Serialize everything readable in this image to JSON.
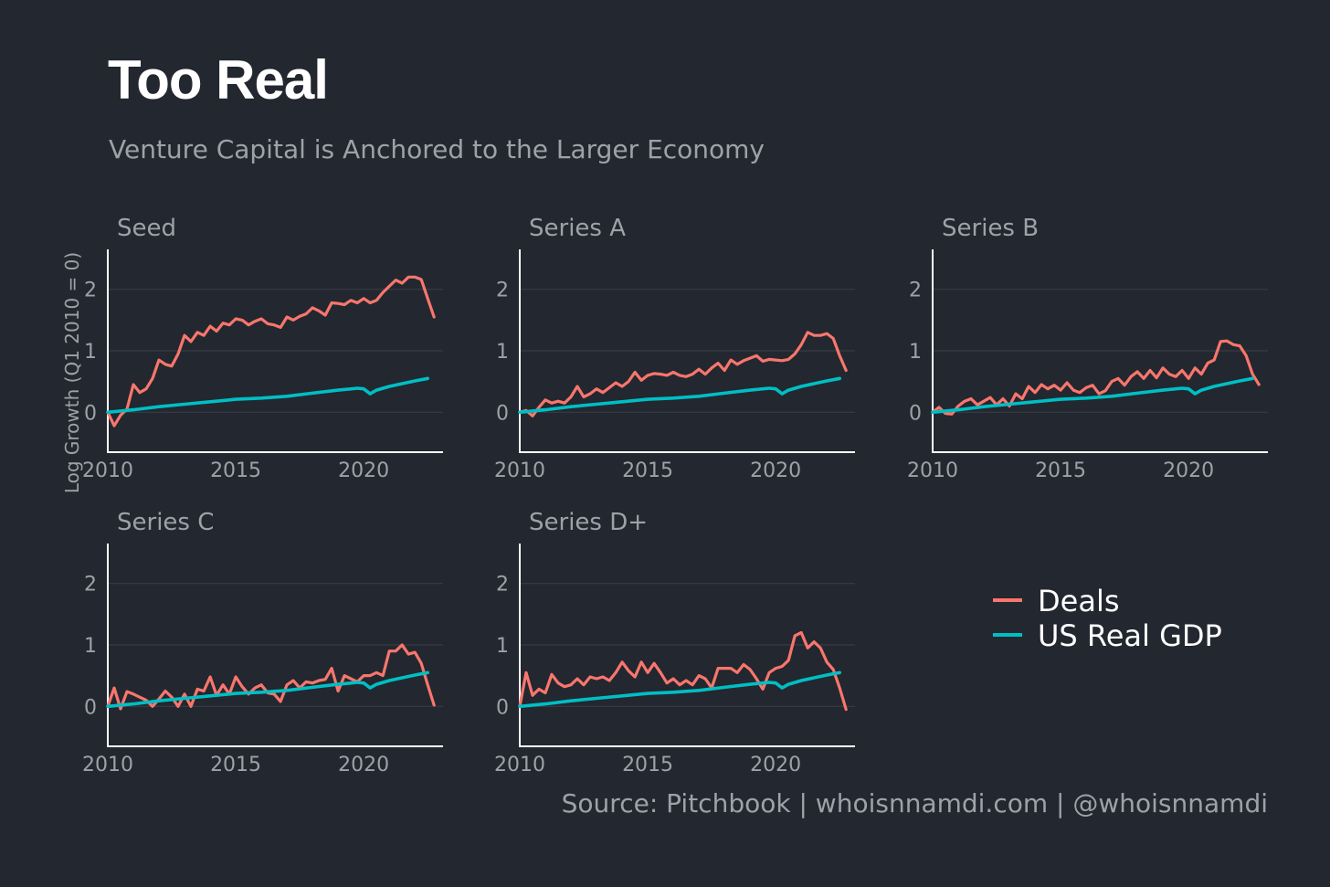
{
  "title": "Too Real",
  "subtitle": "Venture Capital is Anchored to the Larger Economy",
  "source": "Source: Pitchbook | whoisnnamdi.com | @whoisnnamdi",
  "ylabel": "Log Growth (Q1 2010 = 0)",
  "legend": {
    "placement": "right",
    "items": [
      {
        "label": "Deals",
        "color": "#f8766d"
      },
      {
        "label": "US Real GDP",
        "color": "#00bfc4"
      }
    ]
  },
  "chart_data": {
    "type": "line",
    "layout": "small-multiples",
    "xlim": [
      2010,
      2023.1
    ],
    "ylim": [
      -0.65,
      2.65
    ],
    "x_ticks": [
      2010,
      2015,
      2020
    ],
    "y_ticks": [
      0,
      1,
      2
    ],
    "grid": "horizontal",
    "shared_series": {
      "name": "US Real GDP",
      "color": "#00bfc4",
      "x": [
        2010,
        2011,
        2012,
        2013,
        2014,
        2015,
        2016,
        2017,
        2018,
        2019,
        2019.75,
        2020.0,
        2020.25,
        2020.5,
        2021,
        2022,
        2022.5
      ],
      "y": [
        0,
        0.04,
        0.09,
        0.13,
        0.17,
        0.21,
        0.23,
        0.26,
        0.31,
        0.36,
        0.39,
        0.38,
        0.3,
        0.36,
        0.42,
        0.51,
        0.55
      ]
    },
    "panels": [
      {
        "title": "Seed",
        "series": [
          {
            "name": "Deals",
            "color": "#f8766d",
            "x": [
              2010,
              2010.25,
              2010.5,
              2010.75,
              2011,
              2011.25,
              2011.5,
              2011.75,
              2012,
              2012.25,
              2012.5,
              2012.75,
              2013,
              2013.25,
              2013.5,
              2013.75,
              2014,
              2014.25,
              2014.5,
              2014.75,
              2015,
              2015.25,
              2015.5,
              2015.75,
              2016,
              2016.25,
              2016.5,
              2016.75,
              2017,
              2017.25,
              2017.5,
              2017.75,
              2018,
              2018.25,
              2018.5,
              2018.75,
              2019,
              2019.25,
              2019.5,
              2019.75,
              2020,
              2020.25,
              2020.5,
              2020.75,
              2021,
              2021.25,
              2021.5,
              2021.75,
              2022,
              2022.25,
              2022.5,
              2022.75
            ],
            "y": [
              0,
              -0.22,
              -0.05,
              0.05,
              0.45,
              0.32,
              0.38,
              0.55,
              0.85,
              0.78,
              0.75,
              0.95,
              1.25,
              1.15,
              1.3,
              1.25,
              1.4,
              1.32,
              1.45,
              1.42,
              1.52,
              1.5,
              1.42,
              1.48,
              1.52,
              1.44,
              1.42,
              1.38,
              1.55,
              1.5,
              1.56,
              1.6,
              1.7,
              1.65,
              1.58,
              1.78,
              1.77,
              1.75,
              1.82,
              1.78,
              1.85,
              1.78,
              1.82,
              1.95,
              2.05,
              2.15,
              2.1,
              2.2,
              2.2,
              2.16,
              1.85,
              1.55
            ]
          }
        ]
      },
      {
        "title": "Series A",
        "series": [
          {
            "name": "Deals",
            "color": "#f8766d",
            "x": [
              2010,
              2010.25,
              2010.5,
              2010.75,
              2011,
              2011.25,
              2011.5,
              2011.75,
              2012,
              2012.25,
              2012.5,
              2012.75,
              2013,
              2013.25,
              2013.5,
              2013.75,
              2014,
              2014.25,
              2014.5,
              2014.75,
              2015,
              2015.25,
              2015.5,
              2015.75,
              2016,
              2016.25,
              2016.5,
              2016.75,
              2017,
              2017.25,
              2017.5,
              2017.75,
              2018,
              2018.25,
              2018.5,
              2018.75,
              2019,
              2019.25,
              2019.5,
              2019.75,
              2020,
              2020.25,
              2020.5,
              2020.75,
              2021,
              2021.25,
              2021.5,
              2021.75,
              2022,
              2022.25,
              2022.5,
              2022.75
            ],
            "y": [
              0,
              0.03,
              -0.06,
              0.08,
              0.2,
              0.15,
              0.18,
              0.15,
              0.25,
              0.42,
              0.25,
              0.3,
              0.38,
              0.32,
              0.4,
              0.48,
              0.42,
              0.5,
              0.65,
              0.52,
              0.6,
              0.63,
              0.62,
              0.6,
              0.65,
              0.6,
              0.58,
              0.62,
              0.7,
              0.62,
              0.72,
              0.8,
              0.68,
              0.85,
              0.78,
              0.84,
              0.88,
              0.92,
              0.83,
              0.86,
              0.85,
              0.84,
              0.86,
              0.95,
              1.1,
              1.3,
              1.25,
              1.25,
              1.28,
              1.2,
              0.92,
              0.68
            ]
          }
        ]
      },
      {
        "title": "Series B",
        "series": [
          {
            "name": "Deals",
            "color": "#f8766d",
            "x": [
              2010,
              2010.25,
              2010.5,
              2010.75,
              2011,
              2011.25,
              2011.5,
              2011.75,
              2012,
              2012.25,
              2012.5,
              2012.75,
              2013,
              2013.25,
              2013.5,
              2013.75,
              2014,
              2014.25,
              2014.5,
              2014.75,
              2015,
              2015.25,
              2015.5,
              2015.75,
              2016,
              2016.25,
              2016.5,
              2016.75,
              2017,
              2017.25,
              2017.5,
              2017.75,
              2018,
              2018.25,
              2018.5,
              2018.75,
              2019,
              2019.25,
              2019.5,
              2019.75,
              2020,
              2020.25,
              2020.5,
              2020.75,
              2021,
              2021.25,
              2021.5,
              2021.75,
              2022,
              2022.25,
              2022.5,
              2022.75
            ],
            "y": [
              0,
              0.08,
              -0.02,
              -0.03,
              0.1,
              0.18,
              0.22,
              0.12,
              0.18,
              0.24,
              0.12,
              0.22,
              0.1,
              0.3,
              0.22,
              0.42,
              0.32,
              0.45,
              0.38,
              0.44,
              0.36,
              0.48,
              0.36,
              0.32,
              0.4,
              0.44,
              0.3,
              0.35,
              0.5,
              0.55,
              0.44,
              0.58,
              0.66,
              0.55,
              0.68,
              0.56,
              0.72,
              0.62,
              0.58,
              0.68,
              0.55,
              0.72,
              0.62,
              0.8,
              0.85,
              1.15,
              1.16,
              1.1,
              1.08,
              0.92,
              0.62,
              0.45
            ]
          }
        ]
      },
      {
        "title": "Series C",
        "series": [
          {
            "name": "Deals",
            "color": "#f8766d",
            "x": [
              2010,
              2010.25,
              2010.5,
              2010.75,
              2011,
              2011.25,
              2011.5,
              2011.75,
              2012,
              2012.25,
              2012.5,
              2012.75,
              2013,
              2013.25,
              2013.5,
              2013.75,
              2014,
              2014.25,
              2014.5,
              2014.75,
              2015,
              2015.25,
              2015.5,
              2015.75,
              2016,
              2016.25,
              2016.5,
              2016.75,
              2017,
              2017.25,
              2017.5,
              2017.75,
              2018,
              2018.25,
              2018.5,
              2018.75,
              2019,
              2019.25,
              2019.5,
              2019.75,
              2020,
              2020.25,
              2020.5,
              2020.75,
              2021,
              2021.25,
              2021.5,
              2021.75,
              2022,
              2022.25,
              2022.5,
              2022.75
            ],
            "y": [
              0,
              0.3,
              -0.04,
              0.24,
              0.2,
              0.15,
              0.1,
              0.0,
              0.12,
              0.25,
              0.15,
              0.0,
              0.2,
              0.0,
              0.28,
              0.25,
              0.48,
              0.18,
              0.35,
              0.2,
              0.48,
              0.32,
              0.2,
              0.3,
              0.35,
              0.22,
              0.2,
              0.08,
              0.35,
              0.42,
              0.3,
              0.4,
              0.38,
              0.42,
              0.44,
              0.62,
              0.25,
              0.5,
              0.45,
              0.4,
              0.5,
              0.5,
              0.55,
              0.5,
              0.9,
              0.9,
              1.0,
              0.85,
              0.88,
              0.7,
              0.35,
              0.02
            ]
          }
        ]
      },
      {
        "title": "Series D+",
        "series": [
          {
            "name": "Deals",
            "color": "#f8766d",
            "x": [
              2010,
              2010.25,
              2010.5,
              2010.75,
              2011,
              2011.25,
              2011.5,
              2011.75,
              2012,
              2012.25,
              2012.5,
              2012.75,
              2013,
              2013.25,
              2013.5,
              2013.75,
              2014,
              2014.25,
              2014.5,
              2014.75,
              2015,
              2015.25,
              2015.5,
              2015.75,
              2016,
              2016.25,
              2016.5,
              2016.75,
              2017,
              2017.25,
              2017.5,
              2017.75,
              2018,
              2018.25,
              2018.5,
              2018.75,
              2019,
              2019.25,
              2019.5,
              2019.75,
              2020,
              2020.25,
              2020.5,
              2020.75,
              2021,
              2021.25,
              2021.5,
              2021.75,
              2022,
              2022.25,
              2022.5,
              2022.75
            ],
            "y": [
              0,
              0.55,
              0.18,
              0.28,
              0.22,
              0.52,
              0.38,
              0.32,
              0.35,
              0.45,
              0.35,
              0.48,
              0.45,
              0.48,
              0.42,
              0.55,
              0.72,
              0.58,
              0.48,
              0.72,
              0.55,
              0.7,
              0.55,
              0.38,
              0.45,
              0.35,
              0.42,
              0.35,
              0.5,
              0.45,
              0.3,
              0.62,
              0.62,
              0.62,
              0.55,
              0.68,
              0.6,
              0.45,
              0.28,
              0.55,
              0.62,
              0.65,
              0.75,
              1.15,
              1.2,
              0.95,
              1.05,
              0.95,
              0.72,
              0.6,
              0.3,
              -0.05
            ]
          }
        ]
      }
    ]
  }
}
